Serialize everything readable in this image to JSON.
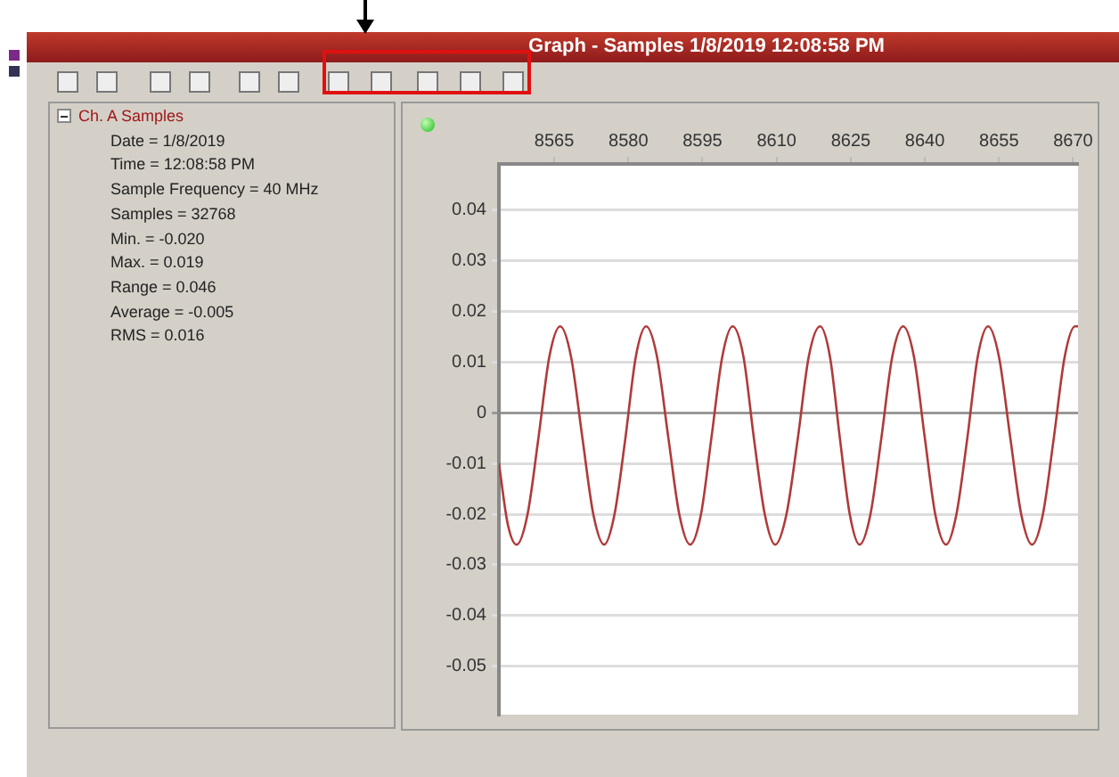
{
  "chart_data": {
    "type": "line",
    "title": "Graph - Samples 1/8/2019 12:08:58 PM",
    "annotations": [
      "Ch. A Samples",
      "Date = 1/8/2019",
      "Time = 12:08:58 PM",
      "Sample Frequency = 40 MHz",
      "Samples = 32768",
      "Min. = -0.020",
      "Max. = 0.019",
      "Range = 0.046",
      "Average = -0.005",
      "RMS = 0.016"
    ],
    "x": [
      8553.8,
      8555.6,
      8557.4,
      8559.6,
      8561.8,
      8564.0,
      8566.2,
      8568.4,
      8570.7,
      8572.9,
      8575.1,
      8577.2,
      8579.4,
      8581.5,
      8583.6,
      8585.8,
      8588.1,
      8590.3,
      8592.5,
      8594.7,
      8596.8,
      8599.0,
      8601.1,
      8603.3,
      8605.4,
      8607.6,
      8609.7,
      8612.0,
      8614.3,
      8616.5,
      8618.8,
      8620.8,
      8622.8,
      8624.8,
      8626.8,
      8629.0,
      8631.2,
      8633.4,
      8635.6,
      8637.8,
      8640.0,
      8642.1,
      8644.3,
      8646.4,
      8648.6,
      8650.7,
      8652.8,
      8655.0,
      8657.3,
      8659.5,
      8661.7,
      8663.9,
      8666.1,
      8668.3,
      8670.4,
      8671.0
    ],
    "series": [
      {
        "color": "#b03a3a",
        "values": [
          -0.01,
          -0.022,
          -0.026,
          -0.02,
          -0.005,
          0.011,
          0.017,
          0.011,
          -0.005,
          -0.02,
          -0.026,
          -0.02,
          -0.005,
          0.011,
          0.017,
          0.011,
          -0.005,
          -0.02,
          -0.026,
          -0.02,
          -0.005,
          0.011,
          0.017,
          0.011,
          -0.005,
          -0.02,
          -0.026,
          -0.02,
          -0.005,
          0.011,
          0.017,
          0.011,
          -0.005,
          -0.02,
          -0.026,
          -0.02,
          -0.005,
          0.011,
          0.017,
          0.011,
          -0.005,
          -0.02,
          -0.026,
          -0.02,
          -0.005,
          0.011,
          0.017,
          0.011,
          -0.005,
          -0.02,
          -0.026,
          -0.02,
          -0.005,
          0.011,
          0.017,
          0.017
        ]
      }
    ],
    "xlim": [
      8553.8,
      8671.0
    ],
    "xticks": [
      8565,
      8580,
      8595,
      8610,
      8625,
      8640,
      8655,
      8670
    ],
    "ylim": [
      -0.0595,
      0.049
    ],
    "yticks": [
      0.04,
      0.03,
      0.02,
      0.01,
      0,
      -0.01,
      -0.02,
      -0.03,
      -0.04,
      -0.05
    ],
    "grid": "y",
    "marker": "none"
  }
}
